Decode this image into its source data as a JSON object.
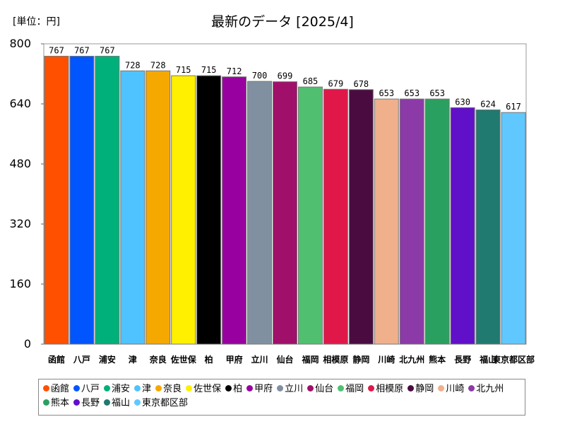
{
  "unit_label": "[単位：円]",
  "chart_data": {
    "type": "bar",
    "title": "最新のデータ [2025/4]",
    "xlabel": "",
    "ylabel": "",
    "ylim": [
      0,
      800
    ],
    "yticks": [
      0,
      160,
      320,
      480,
      640,
      800
    ],
    "grid": false,
    "legend_position": "bottom",
    "categories": [
      "函館",
      "八戸",
      "浦安",
      "津",
      "奈良",
      "佐世保",
      "柏",
      "甲府",
      "立川",
      "仙台",
      "福岡",
      "相模原",
      "静岡",
      "川崎",
      "北九州",
      "熊本",
      "長野",
      "福山",
      "東京都区部"
    ],
    "values": [
      767,
      767,
      767,
      728,
      728,
      715,
      715,
      712,
      700,
      699,
      685,
      679,
      678,
      653,
      653,
      653,
      630,
      624,
      617
    ],
    "colors": [
      "#ff5000",
      "#0055ff",
      "#00b07a",
      "#4fc3ff",
      "#f5a800",
      "#fff000",
      "#000000",
      "#9900a0",
      "#8090a0",
      "#a0106a",
      "#50c070",
      "#e0184a",
      "#4a0c40",
      "#f0b08c",
      "#8c3aa8",
      "#2aa060",
      "#6010c8",
      "#207a70",
      "#60c8ff"
    ]
  }
}
